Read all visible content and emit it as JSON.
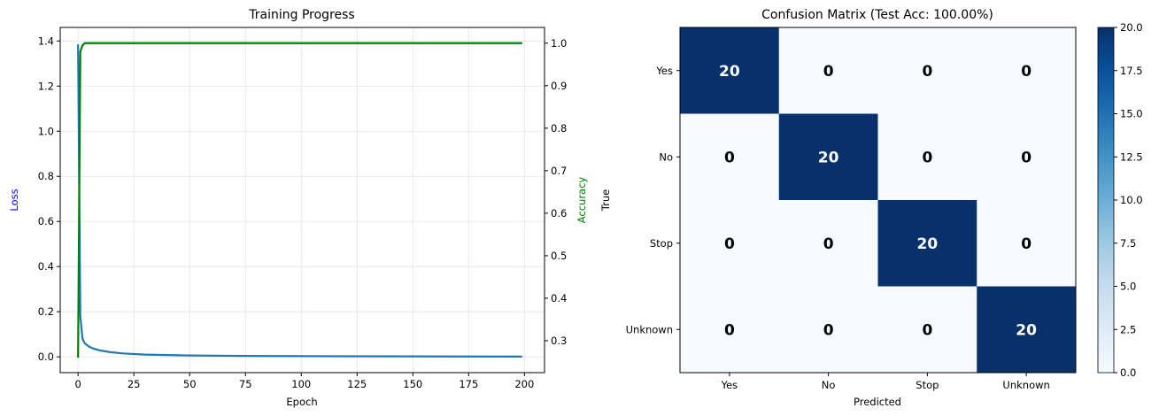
{
  "chart_data": [
    {
      "type": "line",
      "title": "Training Progress",
      "xlabel": "Epoch",
      "ylabel_left": "Loss",
      "ylabel_right": "Accuracy",
      "xlim": [
        -8,
        209
      ],
      "ylim_left": [
        -0.07,
        1.46
      ],
      "ylim_right": [
        0.225,
        1.037
      ],
      "xticks": [
        0,
        25,
        50,
        75,
        100,
        125,
        150,
        175,
        200
      ],
      "yticks_left": [
        0.0,
        0.2,
        0.4,
        0.6,
        0.8,
        1.0,
        1.2,
        1.4
      ],
      "yticks_right": [
        0.3,
        0.4,
        0.5,
        0.6,
        0.7,
        0.8,
        0.9,
        1.0
      ],
      "grid": true,
      "colors": {
        "loss": "#1f77b4",
        "accuracy": "#008000",
        "loss_label": "#0000ff",
        "accuracy_label": "#008000"
      },
      "series": [
        {
          "axis": "left",
          "x": [
            0,
            1,
            2,
            3,
            5,
            7,
            10,
            15,
            20,
            30,
            50,
            75,
            100,
            150,
            199
          ],
          "values": [
            1.385,
            0.18,
            0.08,
            0.06,
            0.045,
            0.036,
            0.028,
            0.02,
            0.015,
            0.01,
            0.006,
            0.004,
            0.003,
            0.002,
            0.001
          ]
        },
        {
          "axis": "right",
          "x": [
            0,
            1,
            2,
            3,
            199
          ],
          "values": [
            0.26,
            0.98,
            0.995,
            1.0,
            1.0
          ]
        }
      ]
    },
    {
      "type": "heatmap",
      "title": "Confusion Matrix (Test Acc: 100.00%)",
      "xlabel": "Predicted",
      "ylabel": "True",
      "categories": [
        "Yes",
        "No",
        "Stop",
        "Unknown"
      ],
      "matrix": [
        [
          20,
          0,
          0,
          0
        ],
        [
          0,
          20,
          0,
          0
        ],
        [
          0,
          0,
          20,
          0
        ],
        [
          0,
          0,
          0,
          20
        ]
      ],
      "colorbar": {
        "min": 0,
        "max": 20,
        "ticks": [
          "0.0",
          "2.5",
          "5.0",
          "7.5",
          "10.0",
          "12.5",
          "15.0",
          "17.5",
          "20.0"
        ]
      },
      "colors": {
        "low": "#f7fbff",
        "high": "#08306b",
        "text_on_dark": "#ffffff",
        "text_on_light": "#000000"
      }
    }
  ]
}
